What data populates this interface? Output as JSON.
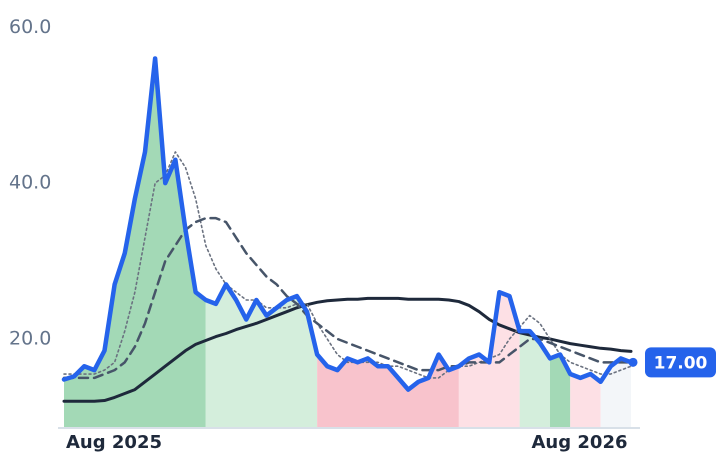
{
  "chart_data": {
    "type": "line",
    "categories": [
      "Aug 2025",
      null,
      null,
      null,
      null,
      null,
      null,
      null,
      null,
      null,
      null,
      null,
      null,
      null,
      null,
      null,
      null,
      null,
      null,
      null,
      null,
      null,
      null,
      null,
      null,
      null,
      null,
      null,
      null,
      null,
      null,
      null,
      null,
      null,
      null,
      null,
      null,
      null,
      null,
      null,
      null,
      null,
      null,
      null,
      null,
      null,
      null,
      null,
      null,
      null,
      null,
      null,
      "Aug 2026",
      null,
      null,
      null,
      null
    ],
    "series": [
      {
        "color": "#1e293b",
        "line_style": "solid",
        "values": [
          12,
          12,
          12,
          12,
          12.1,
          12.5,
          13,
          13.5,
          14.5,
          15.5,
          16.5,
          17.5,
          18.5,
          19.3,
          19.8,
          20.3,
          20.7,
          21.2,
          21.6,
          22,
          22.5,
          23,
          23.5,
          24,
          24.4,
          24.7,
          24.9,
          25,
          25.1,
          25.1,
          25.2,
          25.2,
          25.2,
          25.2,
          25.1,
          25.1,
          25.1,
          25.1,
          25,
          24.8,
          24.3,
          23.5,
          22.5,
          21.8,
          21.3,
          20.8,
          20.5,
          20.2,
          20,
          19.7,
          19.4,
          19.2,
          19,
          18.8,
          18.7,
          18.5,
          18.4
        ]
      },
      {
        "color": "#6b7280",
        "line_style": "dotted",
        "values": [
          15.5,
          15.5,
          15.5,
          15.5,
          16,
          17,
          21,
          26,
          33,
          40,
          41,
          44,
          42,
          38,
          32,
          29,
          27,
          26,
          25,
          25,
          24,
          24,
          24,
          24.5,
          24.5,
          22,
          20,
          18,
          17,
          17,
          17,
          17,
          16.5,
          16.5,
          16,
          15.5,
          15,
          15,
          16,
          16.5,
          16.5,
          17,
          17.5,
          18,
          20,
          21.5,
          23,
          22,
          20,
          18,
          17,
          16.5,
          16,
          15.5,
          15.5,
          16,
          16.5
        ]
      },
      {
        "color": "#475569",
        "line_style": "dashed",
        "values": [
          15,
          15,
          15,
          15,
          15.5,
          16,
          17,
          19,
          22,
          26,
          30,
          32,
          34,
          35,
          35.5,
          35.5,
          35,
          33,
          31,
          29.5,
          28,
          27,
          25.5,
          24.5,
          23,
          22,
          21,
          20,
          19.5,
          19,
          18.5,
          18,
          17.5,
          17,
          16.5,
          16,
          16,
          16,
          16.5,
          16.5,
          17,
          17,
          17,
          17,
          18,
          19,
          20,
          20,
          19.5,
          19,
          18.5,
          18,
          17.5,
          17,
          17,
          17,
          17
        ]
      },
      {
        "color": "#2563eb",
        "line_style": "solid",
        "values": [
          14.8,
          15.2,
          16.5,
          16,
          18.5,
          27,
          31,
          38,
          44,
          56,
          40,
          43,
          34,
          26,
          25,
          24.5,
          27,
          25,
          22.5,
          25,
          23,
          24,
          25,
          25.5,
          23.5,
          18,
          16.5,
          16,
          17.5,
          17,
          17.5,
          16.5,
          16.5,
          15,
          13.5,
          14.5,
          15,
          18,
          16,
          16.5,
          17.5,
          18,
          17,
          26,
          25.5,
          21,
          21,
          19.5,
          17.5,
          18,
          15.5,
          15,
          15.5,
          14.5,
          16.5,
          17.5,
          17
        ],
        "value_labels": [
          null,
          null,
          null,
          null,
          null,
          null,
          null,
          null,
          null,
          null,
          null,
          null,
          null,
          null,
          null,
          null,
          null,
          null,
          null,
          null,
          null,
          null,
          null,
          null,
          null,
          null,
          null,
          null,
          null,
          null,
          null,
          null,
          null,
          null,
          null,
          null,
          null,
          null,
          null,
          null,
          null,
          null,
          null,
          null,
          null,
          null,
          null,
          null,
          null,
          null,
          null,
          null,
          null,
          null,
          null,
          null,
          "17.00"
        ],
        "fill_colors": [
          "#a3d9b6",
          "#a3d9b6",
          "#a3d9b6",
          "#a3d9b6",
          "#a3d9b6",
          "#a3d9b6",
          "#a3d9b6",
          "#a3d9b6",
          "#a3d9b6",
          "#a3d9b6",
          "#a3d9b6",
          "#a3d9b6",
          "#a3d9b6",
          "#a3d9b6",
          "#d4eedc",
          "#d4eedc",
          "#d4eedc",
          "#d4eedc",
          "#d4eedc",
          "#d4eedc",
          "#d4eedc",
          "#d4eedc",
          "#d4eedc",
          "#d4eedc",
          "#d4eedc",
          "#f8c3cc",
          "#f8c3cc",
          "#f8c3cc",
          "#f8c3cc",
          "#f8c3cc",
          "#f8c3cc",
          "#f8c3cc",
          "#f8c3cc",
          "#f8c3cc",
          "#f8c3cc",
          "#f8c3cc",
          "#f8c3cc",
          "#f8c3cc",
          "#f8c3cc",
          "#fde0e5",
          "#fde0e5",
          "#fde0e5",
          "#fde0e5",
          "#fde0e5",
          "#fde0e5",
          "#d4eedc",
          "#d4eedc",
          "#d4eedc",
          "#a3d9b6",
          "#a3d9b6",
          "#fde0e5",
          "#fde0e5",
          "#fde0e5",
          "#f3f6f9",
          "#f3f6f9",
          "#f3f6f9",
          "#f3f6f9"
        ]
      }
    ],
    "ylim": [
      8.7,
      63.5
    ],
    "yticks": [
      {
        "value": 20,
        "label": "20.0"
      },
      {
        "value": 40,
        "label": "40.0"
      },
      {
        "value": 60,
        "label": "60.0"
      }
    ],
    "grid": false
  }
}
